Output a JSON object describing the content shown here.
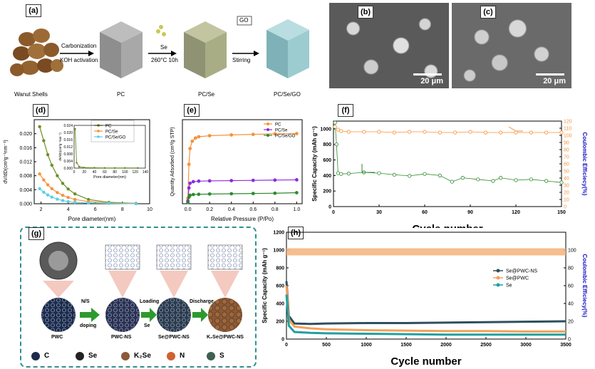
{
  "panels": {
    "a": {
      "label": "(a)",
      "step1_top": "Carbonization",
      "step1_bottom": "KOH activation",
      "step2_top": "Se",
      "step2_bottom": "260°C 10h",
      "step3_top": "GO",
      "step3_bottom": "Stirring",
      "captions": [
        "Wanut Shells",
        "PC",
        "PC/Se",
        "PC/Se/GO"
      ]
    },
    "b": {
      "label": "(b)",
      "scale": "20 μm"
    },
    "c": {
      "label": "(c)",
      "scale": "20 μm"
    },
    "g": {
      "label": "(g)",
      "steps": [
        {
          "top": "N/S",
          "bottom": "doping"
        },
        {
          "top": "Loading",
          "bottom": "Se"
        },
        {
          "top": "Discharge",
          "bottom": ""
        }
      ],
      "captions": [
        "PWC",
        "PWC-NS",
        "Se@PWC-NS",
        "K₂Se@PWC-NS"
      ],
      "legend": [
        "C",
        "Se",
        "K₂Se",
        "N",
        "S"
      ],
      "legend_colors": [
        "#1c2a4a",
        "#222222",
        "#8a5a3a",
        "#d06030",
        "#3f5f4f"
      ]
    }
  },
  "chart_data": [
    {
      "panel": "(d)",
      "type": "line",
      "xlabel": "Pore diameter(nm)",
      "ylabel": "dV/dD(cm³g⁻¹nm⁻¹)",
      "xlim": [
        1.5,
        10
      ],
      "ylim": [
        0,
        0.024
      ],
      "xticks": [
        2,
        4,
        6,
        8,
        10
      ],
      "yticks": [
        0.0,
        0.004,
        0.008,
        0.012,
        0.016,
        0.02
      ],
      "legend": "top-right",
      "series": [
        {
          "name": "PC",
          "color": "#6b8e23",
          "x": [
            1.9,
            2.2,
            2.5,
            2.8,
            3.2,
            3.6,
            4.0,
            4.5,
            5.5,
            7.0,
            9.0
          ],
          "y": [
            0.022,
            0.018,
            0.014,
            0.011,
            0.008,
            0.0058,
            0.0042,
            0.0028,
            0.0012,
            0.0004,
            0.0001
          ]
        },
        {
          "name": "PC/Se",
          "color": "#f5923a",
          "x": [
            1.9,
            2.2,
            2.5,
            2.8,
            3.2,
            3.6,
            4.0,
            4.5,
            5.5,
            7.0,
            9.0
          ],
          "y": [
            0.0085,
            0.0068,
            0.0054,
            0.0043,
            0.0032,
            0.0024,
            0.0018,
            0.0012,
            0.0006,
            0.0002,
            0.0001
          ]
        },
        {
          "name": "PC/Se/GO",
          "color": "#5ad0e0",
          "x": [
            1.9,
            2.2,
            2.5,
            2.8,
            3.2,
            3.6,
            4.0,
            4.5,
            5.5,
            7.0,
            9.0
          ],
          "y": [
            0.0043,
            0.0033,
            0.0025,
            0.0019,
            0.0013,
            0.0009,
            0.0006,
            0.0004,
            0.0002,
            0.0001,
            0.0
          ]
        }
      ],
      "inset": {
        "xlabel": "Pore diameter(nm)",
        "ylabel": "dV/dD(cm³g⁻¹nm⁻¹)",
        "xlim": [
          0,
          140
        ],
        "ylim": [
          0,
          0.024
        ],
        "xticks": [
          0,
          20,
          40,
          60,
          80,
          100,
          120,
          140
        ],
        "yticks": [
          0.0,
          0.004,
          0.008,
          0.012,
          0.016,
          0.02,
          0.024
        ],
        "x": [
          2,
          5,
          10,
          20,
          40,
          60,
          80,
          100,
          125
        ],
        "y": [
          0.022,
          0.003,
          0.0008,
          0.0003,
          0.0002,
          0.0001,
          0.0001,
          0.0001,
          0.0001
        ]
      }
    },
    {
      "panel": "(e)",
      "type": "line",
      "xlabel": "Relative Pressure (P/Po)",
      "ylabel": "Quantity Adsorbed (cm³/g STP)",
      "xlim": [
        -0.05,
        1.05
      ],
      "ylim": [
        0,
        320
      ],
      "xticks": [
        0.0,
        0.2,
        0.4,
        0.6,
        0.8,
        1.0
      ],
      "legend": "top-right",
      "series": [
        {
          "name": "PC",
          "color": "#f5923a",
          "x": [
            0.0,
            0.01,
            0.02,
            0.04,
            0.07,
            0.1,
            0.2,
            0.4,
            0.6,
            0.8,
            1.0
          ],
          "y": [
            20,
            150,
            210,
            238,
            250,
            255,
            259,
            262,
            264,
            266,
            267
          ]
        },
        {
          "name": "PC/Se",
          "color": "#8a2be2",
          "x": [
            0.0,
            0.01,
            0.02,
            0.05,
            0.1,
            0.2,
            0.4,
            0.6,
            0.8,
            1.0
          ],
          "y": [
            10,
            60,
            78,
            84,
            86,
            87,
            88,
            89,
            90,
            91
          ]
        },
        {
          "name": "PC/Se/GO",
          "color": "#2e8b2e",
          "x": [
            0.0,
            0.01,
            0.02,
            0.05,
            0.1,
            0.2,
            0.4,
            0.6,
            0.8,
            1.0
          ],
          "y": [
            5,
            25,
            32,
            35,
            36,
            37,
            38,
            39,
            40,
            42
          ]
        }
      ]
    },
    {
      "panel": "(f)",
      "type": "scatter",
      "xlabel": "Cycle number",
      "ylabel": "Specific Capacity (mAh g⁻¹)",
      "ylabel_right": "Coulombic Efficiecy(%)",
      "xlim": [
        0,
        150
      ],
      "ylim": [
        0,
        1100
      ],
      "ylim_right": [
        0,
        120
      ],
      "xticks": [
        0,
        30,
        60,
        90,
        120,
        150
      ],
      "yticks": [
        0,
        200,
        400,
        600,
        800,
        1000
      ],
      "yticks_right": [
        0,
        10,
        20,
        30,
        40,
        50,
        60,
        70,
        80,
        90,
        100,
        110,
        120
      ],
      "series": [
        {
          "name": "capacity",
          "axis": "left",
          "color": "#2e8b2e",
          "x": [
            1,
            2,
            3,
            5,
            10,
            20,
            30,
            40,
            50,
            60,
            70,
            78,
            85,
            95,
            105,
            110,
            120,
            130,
            140,
            150
          ],
          "y": [
            1080,
            800,
            430,
            420,
            425,
            440,
            430,
            410,
            395,
            420,
            400,
            320,
            370,
            350,
            330,
            370,
            340,
            350,
            330,
            310
          ]
        },
        {
          "name": "coulombic efficiency",
          "axis": "right",
          "color": "#f5923a",
          "x": [
            1,
            3,
            5,
            10,
            20,
            30,
            40,
            50,
            60,
            70,
            80,
            90,
            100,
            110,
            120,
            130,
            140,
            150
          ],
          "y": [
            112,
            108,
            106,
            105,
            105,
            105,
            104,
            105,
            105,
            104,
            104,
            105,
            104,
            104,
            104,
            104,
            104,
            104
          ]
        }
      ]
    },
    {
      "panel": "(h)",
      "type": "line",
      "xlabel": "Cycle number",
      "ylabel": "Specific Capacity (mAh g⁻¹)",
      "ylabel_right": "Coulombic Efficiecy(%)",
      "xlim": [
        0,
        3500
      ],
      "ylim": [
        0,
        1200
      ],
      "ylim_right": [
        0,
        120
      ],
      "xticks": [
        0,
        500,
        1000,
        1500,
        2000,
        2500,
        3000,
        3500
      ],
      "yticks": [
        0,
        200,
        400,
        600,
        800,
        1000,
        1200
      ],
      "yticks_right": [
        0,
        20,
        40,
        60,
        80,
        100
      ],
      "legend": "center-right",
      "series": [
        {
          "name": "Se@PWC-NS",
          "color": "#2f4f5f",
          "x": [
            0,
            30,
            100,
            300,
            500,
            1000,
            1500,
            2000,
            2500,
            3000,
            3500
          ],
          "y": [
            650,
            260,
            175,
            170,
            175,
            180,
            180,
            185,
            190,
            195,
            200
          ]
        },
        {
          "name": "Se@PWC",
          "color": "#f5a05a",
          "x": [
            0,
            30,
            100,
            300,
            500,
            1000,
            1500,
            2000,
            2500,
            3000,
            3500
          ],
          "y": [
            600,
            220,
            140,
            120,
            110,
            100,
            95,
            90,
            90,
            85,
            85
          ]
        },
        {
          "name": "Se",
          "color": "#20a0a0",
          "x": [
            0,
            30,
            100,
            300,
            500,
            1000,
            1500,
            2000,
            2500,
            3000,
            3500
          ],
          "y": [
            500,
            150,
            80,
            70,
            65,
            60,
            55,
            50,
            50,
            50,
            50
          ]
        }
      ],
      "ce_level_percent": 98
    }
  ]
}
